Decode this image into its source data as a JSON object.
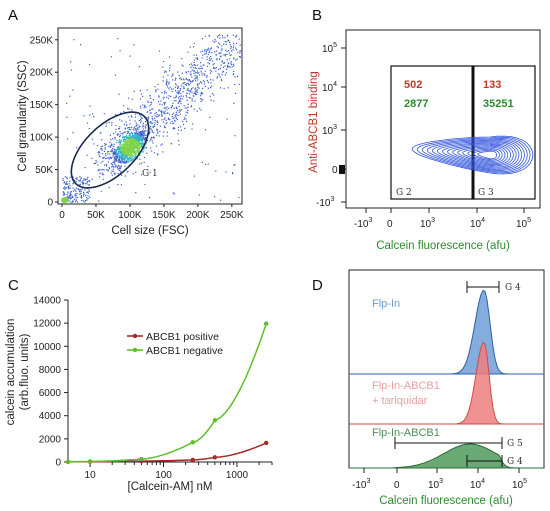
{
  "colors": {
    "scatter_blue": "#3a5fcd",
    "gate_dark": "#1a2a4a",
    "red": "#c0392b",
    "green": "#2e8b2e",
    "green_line": "#5cbf2a",
    "dark_red_line": "#a52a2a",
    "contour_blue": "#3355dd",
    "hist_blue_fill": "#6f9fd8",
    "hist_red_fill": "#ef7f7f",
    "hist_green_fill": "#4f9a5a",
    "pink_text": "#e9a0a0",
    "blue_text": "#6c9bd1"
  },
  "panelA": {
    "letter": "A",
    "ylabel": "Cell granularity (SSC)",
    "xlabel": "Cell size (FSC)",
    "yticks": [
      "250K",
      "200K",
      "150K",
      "100K",
      "50K",
      "0"
    ],
    "xticks": [
      "0",
      "50K",
      "100K",
      "150K",
      "200K",
      "250K"
    ],
    "gate": "G 1"
  },
  "panelB": {
    "letter": "B",
    "ylabel": "Anti-ABCB1 binding",
    "xlabel": "Calcein fluorescence (afu)",
    "yticks": {
      "t1": "10",
      "e1": "5",
      "t2": "10",
      "e2": "4",
      "t3": "10",
      "e3": "3",
      "t4": "0",
      "t5": "-10",
      "e5": "3"
    },
    "xticks": {
      "t1": "-10",
      "e1": "3",
      "t2": "0",
      "t3": "10",
      "e3": "3",
      "t4": "10",
      "e4": "4",
      "t5": "10",
      "e5": "5"
    },
    "g2_red": "502",
    "g2_green": "2877",
    "g3_red": "133",
    "g3_green": "35251",
    "gate_left": "G 2",
    "gate_right": "G 3"
  },
  "panelC": {
    "letter": "C",
    "ylabel_line1": "calcein accumulation",
    "ylabel_line2": "(arb.fluo. units)",
    "xlabel": "[Calcein-AM] nM",
    "yticks": [
      "14000",
      "12000",
      "10000",
      "8000",
      "6000",
      "4000",
      "2000",
      "0"
    ],
    "xticks": [
      "10",
      "100",
      "1000"
    ]
  },
  "panelD": {
    "letter": "D",
    "xlabel": "Calcein fluorescence (afu)",
    "label_top": "Flp-In",
    "label_mid_1": "Flp-In-ABCB1",
    "label_mid_2": "+ tariquidar",
    "label_bot": "Flp-In-ABCB1",
    "gate_top": "G 4",
    "gate_g5": "G 5",
    "gate_g4b": "G 4",
    "xticks": {
      "t1": "-10",
      "e1": "3",
      "t2": "0",
      "t3": "10",
      "e3": "3",
      "t4": "10",
      "e4": "4",
      "t5": "10",
      "e5": "5"
    }
  },
  "chart_data": [
    {
      "type": "scatter",
      "panel": "A",
      "xlabel": "Cell size (FSC)",
      "ylabel": "Cell granularity (SSC)",
      "xlim": [
        0,
        262000
      ],
      "ylim": [
        0,
        262000
      ],
      "gates": [
        {
          "name": "G 1",
          "center": [
            100000,
            85000
          ]
        }
      ]
    },
    {
      "type": "scatter",
      "panel": "B",
      "xlabel": "Calcein fluorescence (afu)",
      "ylabel": "Anti-ABCB1 binding",
      "gates": [
        {
          "name": "G 2",
          "counts": {
            "ABCB1 positive": 502,
            "ABCB1 negative": 2877
          }
        },
        {
          "name": "G 3",
          "counts": {
            "ABCB1 positive": 133,
            "ABCB1 negative": 35251
          }
        }
      ]
    },
    {
      "type": "line",
      "panel": "C",
      "xlabel": "[Calcein-AM] nM",
      "ylabel": "calcein accumulation (arb.fluo. units)",
      "xscale": "log",
      "xlim": [
        5,
        3000
      ],
      "ylim": [
        0,
        14000
      ],
      "legend": "center-right",
      "series": [
        {
          "name": "ABCB1 positive",
          "x": [
            5,
            10,
            50,
            250,
            500,
            2500
          ],
          "y": [
            20,
            30,
            80,
            180,
            400,
            1650
          ]
        },
        {
          "name": "ABCB1 negative",
          "x": [
            5,
            10,
            50,
            250,
            500,
            2500
          ],
          "y": [
            30,
            50,
            250,
            1700,
            3600,
            11950
          ]
        }
      ]
    },
    {
      "type": "area",
      "panel": "D",
      "xlabel": "Calcein fluorescence (afu)",
      "xscale": "biexponential",
      "series": [
        {
          "name": "Flp-In"
        },
        {
          "name": "Flp-In-ABCB1 + tariquidar"
        },
        {
          "name": "Flp-In-ABCB1"
        }
      ],
      "gates": [
        "G 4",
        "G 5",
        "G 4"
      ]
    }
  ]
}
